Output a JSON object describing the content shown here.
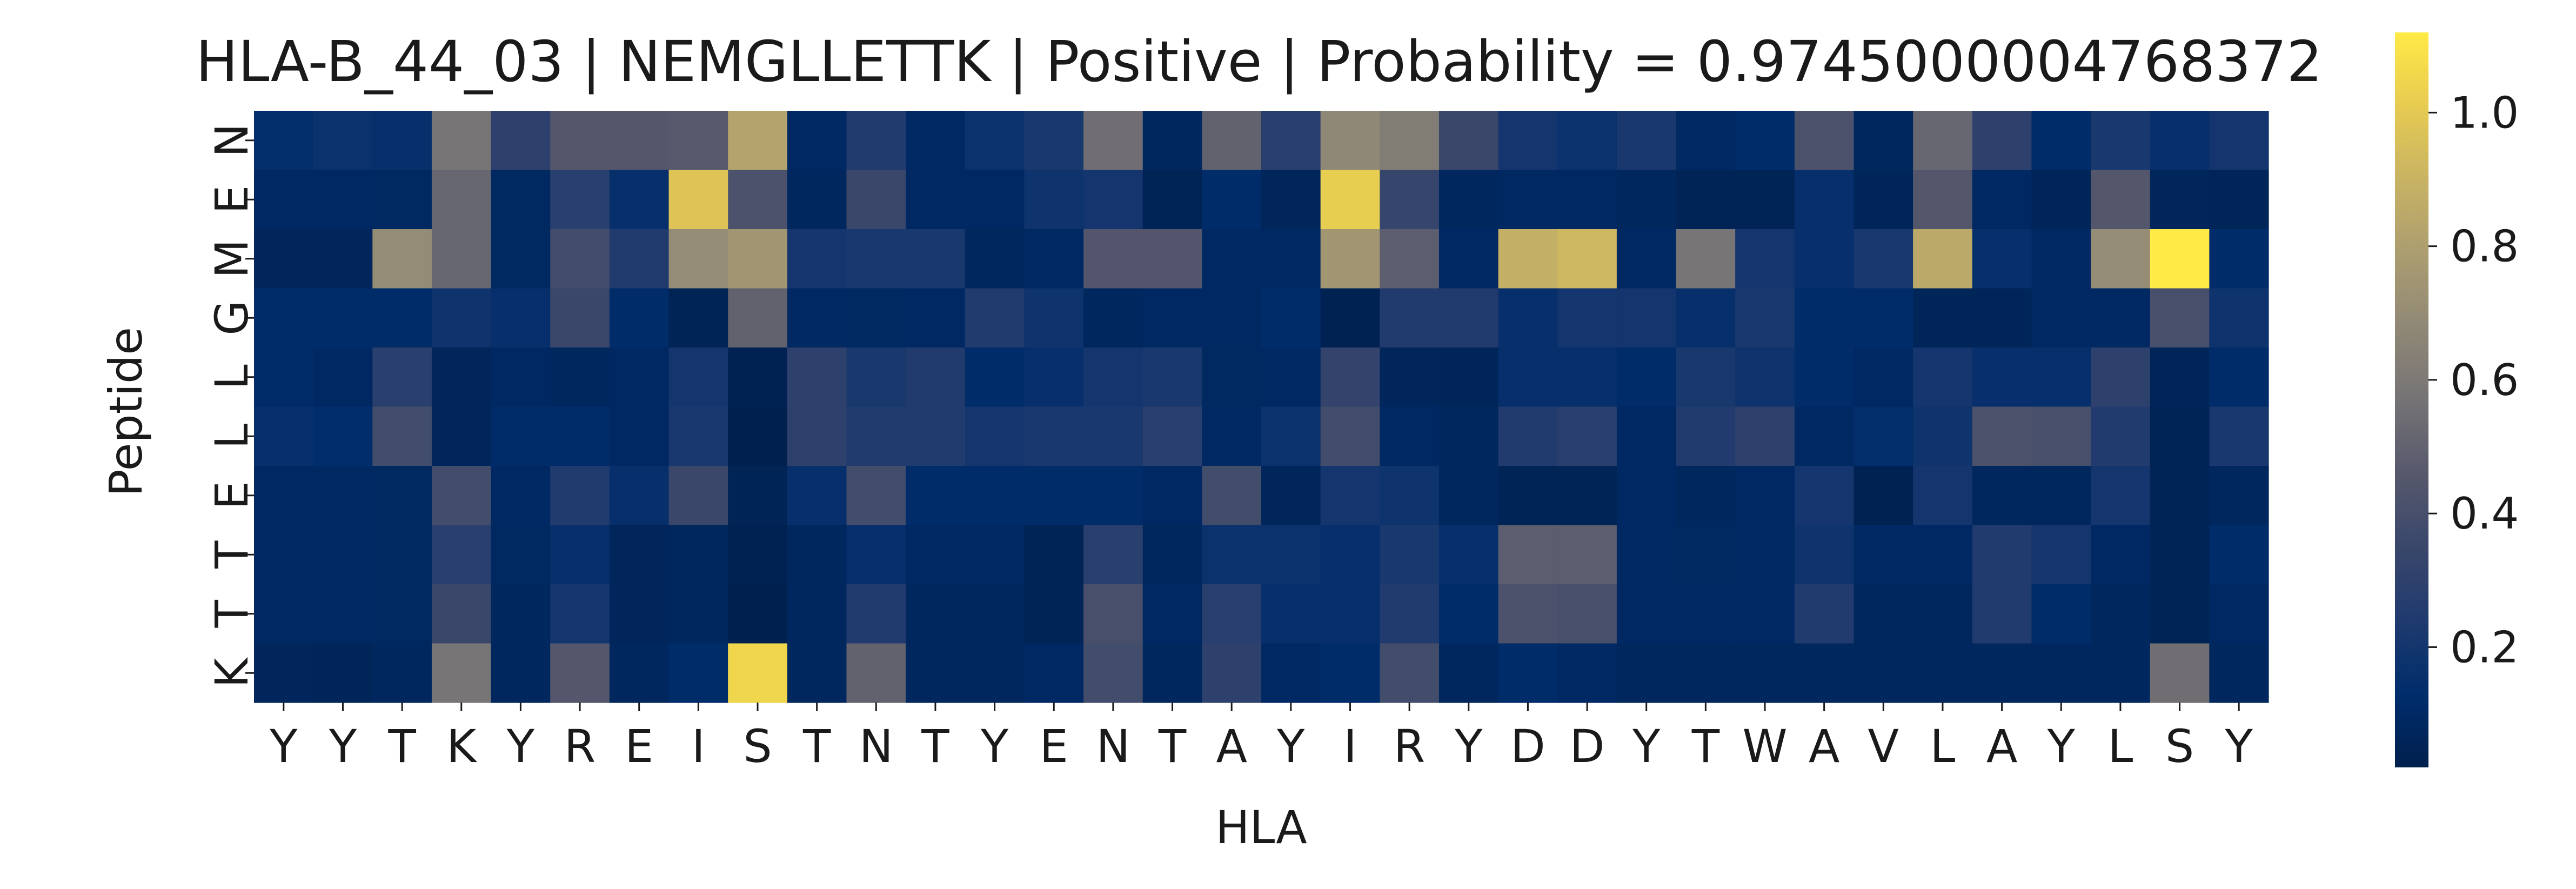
{
  "chart_data": {
    "type": "heatmap",
    "title": "HLA-B_44_03 | NEMGLLETTK | Positive | Probability = 0.9745000004768372",
    "xlabel": "HLA",
    "ylabel": "Peptide",
    "x_categories": [
      "Y",
      "Y",
      "T",
      "K",
      "Y",
      "R",
      "E",
      "I",
      "S",
      "T",
      "N",
      "T",
      "Y",
      "E",
      "N",
      "T",
      "A",
      "Y",
      "I",
      "R",
      "Y",
      "D",
      "D",
      "Y",
      "T",
      "W",
      "A",
      "V",
      "L",
      "A",
      "Y",
      "L",
      "S",
      "Y"
    ],
    "y_categories": [
      "N",
      "E",
      "M",
      "G",
      "L",
      "L",
      "E",
      "T",
      "T",
      "K"
    ],
    "colorbar": {
      "colormap": "cividis",
      "range": [
        0.02,
        1.12
      ],
      "ticks": [
        0.2,
        0.4,
        0.6,
        0.8,
        1.0
      ],
      "tick_labels": [
        "0.2",
        "0.4",
        "0.6",
        "0.8",
        "1.0"
      ]
    },
    "values": [
      [
        0.14,
        0.17,
        0.15,
        0.58,
        0.3,
        0.45,
        0.45,
        0.46,
        0.82,
        0.1,
        0.25,
        0.1,
        0.17,
        0.22,
        0.55,
        0.08,
        0.5,
        0.28,
        0.68,
        0.62,
        0.35,
        0.2,
        0.17,
        0.22,
        0.1,
        0.12,
        0.42,
        0.08,
        0.52,
        0.3,
        0.12,
        0.22,
        0.15,
        0.2
      ],
      [
        0.1,
        0.1,
        0.09,
        0.52,
        0.09,
        0.28,
        0.15,
        0.98,
        0.42,
        0.08,
        0.35,
        0.1,
        0.1,
        0.18,
        0.2,
        0.05,
        0.12,
        0.07,
        1.02,
        0.33,
        0.08,
        0.1,
        0.1,
        0.08,
        0.05,
        0.05,
        0.15,
        0.06,
        0.45,
        0.1,
        0.06,
        0.45,
        0.07,
        0.06
      ],
      [
        0.07,
        0.07,
        0.7,
        0.52,
        0.09,
        0.38,
        0.25,
        0.7,
        0.75,
        0.2,
        0.22,
        0.22,
        0.08,
        0.1,
        0.44,
        0.44,
        0.1,
        0.1,
        0.75,
        0.48,
        0.1,
        0.88,
        0.92,
        0.1,
        0.58,
        0.2,
        0.15,
        0.22,
        0.85,
        0.15,
        0.1,
        0.7,
        1.12,
        0.12
      ],
      [
        0.12,
        0.12,
        0.12,
        0.18,
        0.15,
        0.35,
        0.12,
        0.05,
        0.5,
        0.1,
        0.09,
        0.1,
        0.25,
        0.18,
        0.08,
        0.1,
        0.1,
        0.12,
        0.04,
        0.25,
        0.25,
        0.15,
        0.2,
        0.2,
        0.15,
        0.22,
        0.12,
        0.12,
        0.06,
        0.06,
        0.1,
        0.1,
        0.4,
        0.18
      ],
      [
        0.12,
        0.1,
        0.28,
        0.07,
        0.1,
        0.08,
        0.1,
        0.2,
        0.04,
        0.3,
        0.22,
        0.25,
        0.12,
        0.15,
        0.2,
        0.22,
        0.09,
        0.1,
        0.32,
        0.07,
        0.06,
        0.15,
        0.15,
        0.12,
        0.22,
        0.18,
        0.12,
        0.1,
        0.2,
        0.15,
        0.15,
        0.3,
        0.06,
        0.12
      ],
      [
        0.15,
        0.13,
        0.38,
        0.07,
        0.12,
        0.12,
        0.1,
        0.22,
        0.03,
        0.3,
        0.25,
        0.25,
        0.2,
        0.22,
        0.22,
        0.28,
        0.1,
        0.17,
        0.38,
        0.1,
        0.08,
        0.25,
        0.28,
        0.1,
        0.25,
        0.3,
        0.1,
        0.14,
        0.18,
        0.42,
        0.4,
        0.25,
        0.05,
        0.22
      ],
      [
        0.1,
        0.1,
        0.09,
        0.38,
        0.1,
        0.25,
        0.15,
        0.35,
        0.05,
        0.15,
        0.38,
        0.12,
        0.12,
        0.12,
        0.12,
        0.1,
        0.38,
        0.07,
        0.2,
        0.18,
        0.08,
        0.05,
        0.05,
        0.1,
        0.08,
        0.1,
        0.2,
        0.04,
        0.2,
        0.08,
        0.08,
        0.2,
        0.05,
        0.08
      ],
      [
        0.1,
        0.1,
        0.09,
        0.28,
        0.09,
        0.15,
        0.07,
        0.08,
        0.04,
        0.08,
        0.15,
        0.1,
        0.1,
        0.05,
        0.28,
        0.08,
        0.17,
        0.17,
        0.15,
        0.22,
        0.15,
        0.48,
        0.48,
        0.1,
        0.09,
        0.1,
        0.18,
        0.1,
        0.1,
        0.25,
        0.2,
        0.1,
        0.05,
        0.12
      ],
      [
        0.1,
        0.1,
        0.09,
        0.35,
        0.08,
        0.2,
        0.07,
        0.08,
        0.03,
        0.08,
        0.25,
        0.08,
        0.08,
        0.05,
        0.4,
        0.1,
        0.28,
        0.15,
        0.15,
        0.25,
        0.12,
        0.42,
        0.4,
        0.1,
        0.1,
        0.1,
        0.25,
        0.08,
        0.08,
        0.25,
        0.12,
        0.08,
        0.05,
        0.1
      ],
      [
        0.07,
        0.06,
        0.08,
        0.58,
        0.08,
        0.45,
        0.08,
        0.12,
        1.05,
        0.08,
        0.5,
        0.08,
        0.08,
        0.1,
        0.38,
        0.08,
        0.3,
        0.1,
        0.12,
        0.38,
        0.08,
        0.12,
        0.1,
        0.08,
        0.08,
        0.08,
        0.08,
        0.08,
        0.08,
        0.08,
        0.08,
        0.08,
        0.55,
        0.08
      ]
    ]
  }
}
